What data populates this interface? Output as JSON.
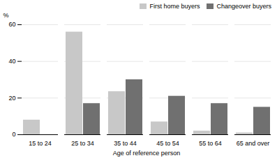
{
  "chart_data": {
    "type": "bar",
    "categories": [
      "15 to 24",
      "25 to 34",
      "35 to 44",
      "45 to 54",
      "55 to 64",
      "65 and over"
    ],
    "series": [
      {
        "name": "First home buyers",
        "color": "#c8c8c8",
        "values": [
          8,
          56,
          23.5,
          7,
          2,
          1
        ]
      },
      {
        "name": "Changeover buyers",
        "color": "#707070",
        "values": [
          0,
          17,
          30,
          21,
          17,
          15
        ]
      }
    ],
    "xlabel": "Age of reference person",
    "ylabel": "%",
    "ylim": [
      0,
      60
    ],
    "yticks": [
      0,
      20,
      40,
      60
    ],
    "grid": true,
    "legend": "upper right"
  }
}
